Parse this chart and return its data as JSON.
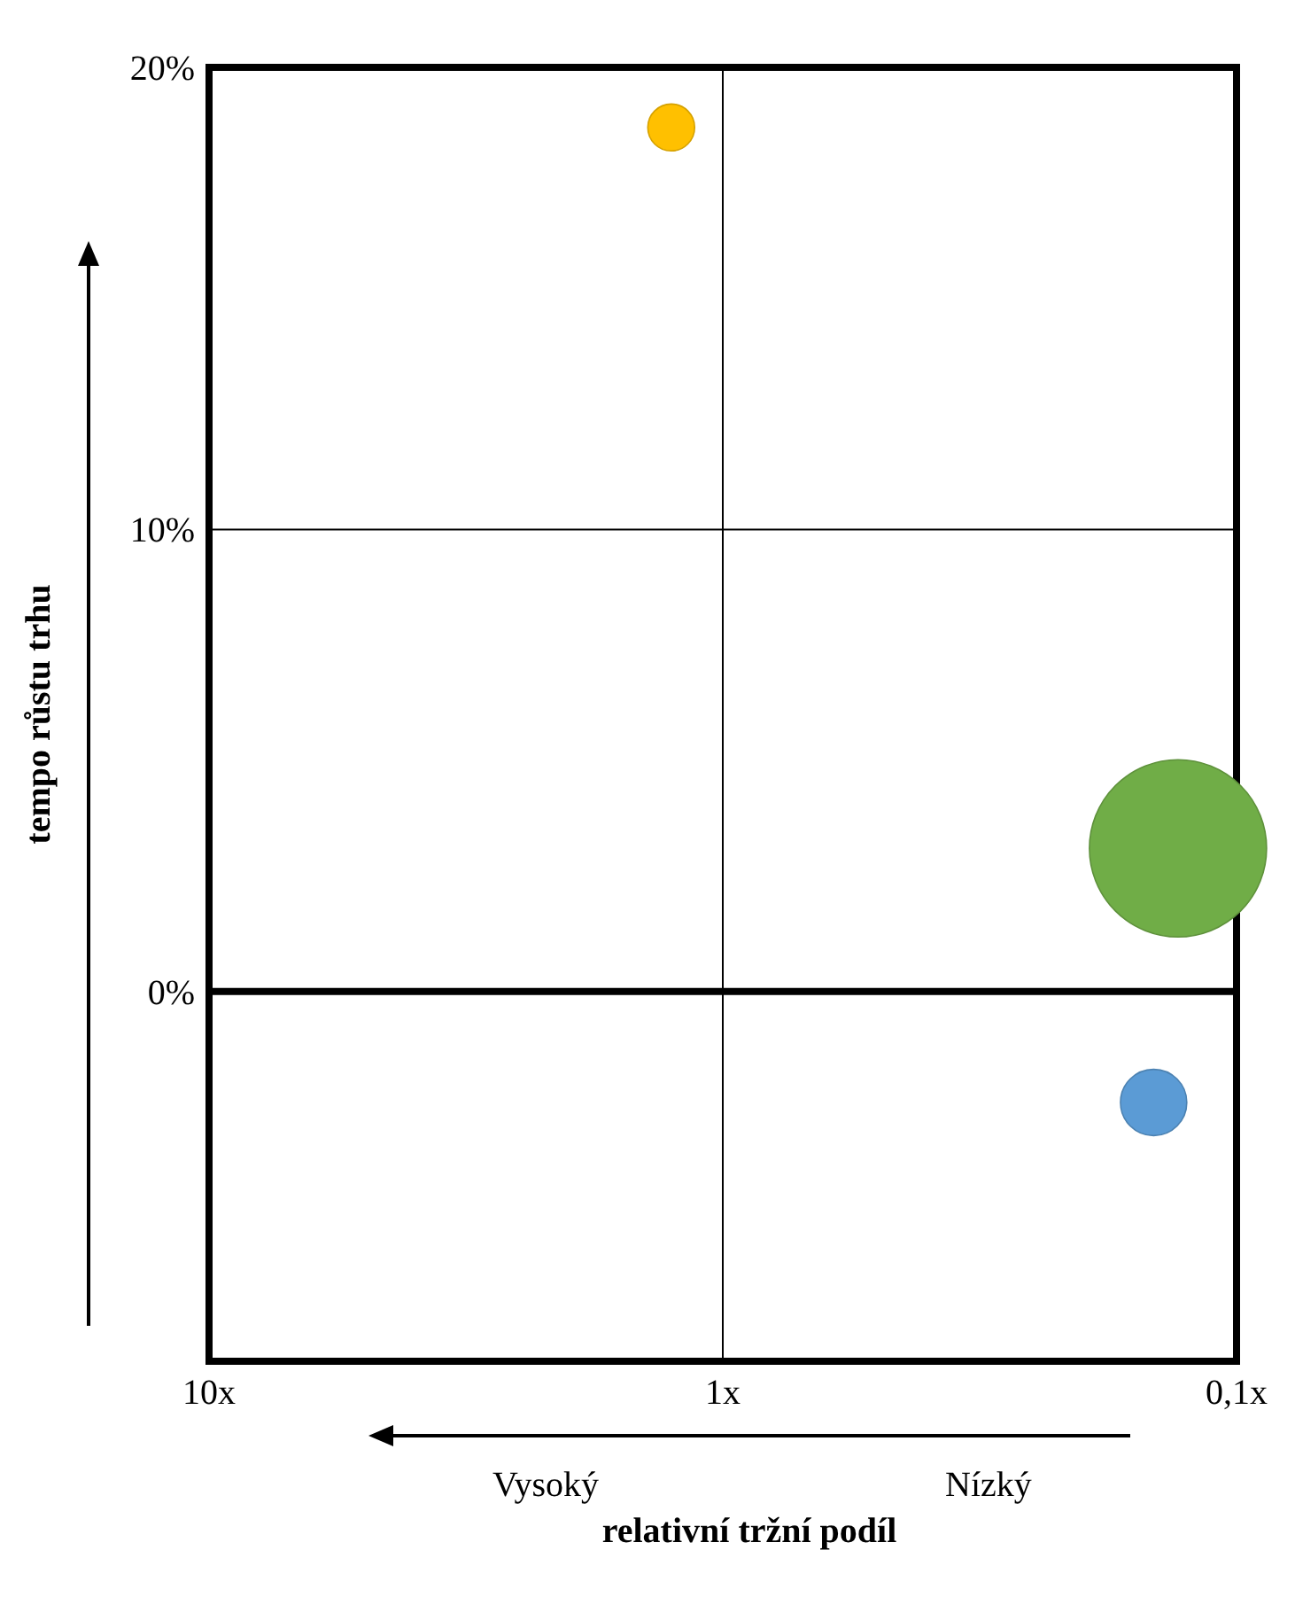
{
  "chart_data": {
    "type": "bubble",
    "xlabel": "relativní tržní podíl",
    "ylabel": "tempo růstu trhu",
    "log": "x",
    "xlim": [
      10,
      0.1
    ],
    "xticks": [
      {
        "value": 10,
        "label": "10x"
      },
      {
        "value": 1,
        "label": "1x"
      },
      {
        "value": 0.1,
        "label": "0,1x"
      }
    ],
    "ylim": [
      -8,
      20
    ],
    "yticks": [
      {
        "value": 0,
        "label": "0%"
      },
      {
        "value": 10,
        "label": "10%"
      },
      {
        "value": 20,
        "label": "20%"
      }
    ],
    "grid": true,
    "series": [
      {
        "color": "#ffc000",
        "x": [
          1.26
        ],
        "values": [
          18.7
        ],
        "sizes": [
          0.07
        ]
      },
      {
        "color": "#70ad47",
        "x": [
          0.13
        ],
        "values": [
          3.1
        ],
        "sizes": [
          1
        ]
      },
      {
        "color": "#5b9bd5",
        "x": [
          0.145
        ],
        "values": [
          -2.4
        ],
        "sizes": [
          0.14
        ]
      }
    ],
    "ref_lines": [
      {
        "axis": "y",
        "value": 0
      }
    ],
    "annotations": [
      "Vysoký",
      "Nízký"
    ]
  }
}
